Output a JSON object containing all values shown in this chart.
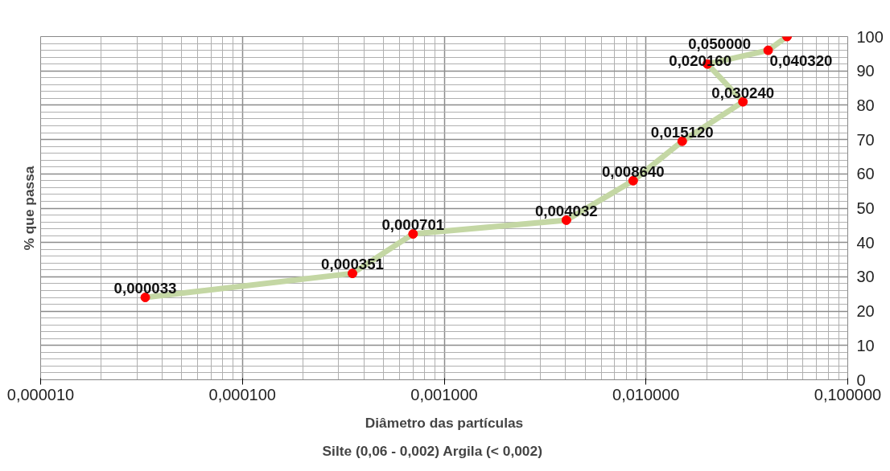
{
  "chart_data": {
    "type": "line",
    "xlabel": "Diâmetro das partículas",
    "ylabel": "% que passa",
    "annotations": [
      "Silte  (0,06  - 0,002)     Argila (< 0,002)",
      {
        "text": "0,000033",
        "x": 3.3e-05,
        "y": 24
      },
      {
        "text": "0,000351",
        "x": 0.000351,
        "y": 31
      },
      {
        "text": "0,000701",
        "x": 0.000701,
        "y": 42.5
      },
      {
        "text": "0,004032",
        "x": 0.004032,
        "y": 46.5
      },
      {
        "text": "0,008640",
        "x": 0.00864,
        "y": 58
      },
      {
        "text": "0,015120",
        "x": 0.01512,
        "y": 69.5
      },
      {
        "text": "0,030240",
        "x": 0.03024,
        "y": 81
      },
      {
        "text": "0,020160",
        "x": 0.02016,
        "y": 92
      },
      {
        "text": "0,040320",
        "x": 0.04032,
        "y": 96
      },
      {
        "text": "0,050000",
        "x": 0.05,
        "y": 100
      }
    ],
    "x": [
      3.3e-05,
      0.000351,
      0.000701,
      0.004032,
      0.00864,
      0.01512,
      0.03024,
      0.02016,
      0.04032,
      0.05
    ],
    "series": [
      {
        "color": "#c4d7a4",
        "values": [
          24,
          31,
          42.5,
          46.5,
          58,
          69.5,
          81,
          92,
          96,
          100
        ]
      },
      {
        "type": "scatter",
        "marker": "circle",
        "color": "#ff0000",
        "values": [
          24,
          31,
          42.5,
          46.5,
          58,
          69.5,
          81,
          92,
          96,
          100
        ]
      }
    ],
    "log": "x",
    "grid": true,
    "xlim": [
      1e-05,
      0.1
    ],
    "ylim": [
      0,
      100
    ],
    "xticks": [
      {
        "value": 1e-05,
        "label": "0,000010"
      },
      {
        "value": 0.0001,
        "label": "0,000100"
      },
      {
        "value": 0.001,
        "label": "0,001000"
      },
      {
        "value": 0.01,
        "label": "0,010000"
      },
      {
        "value": 0.1,
        "label": "0,100000"
      }
    ],
    "yticks": [
      0,
      10,
      20,
      30,
      40,
      50,
      60,
      70,
      80,
      90,
      100
    ]
  }
}
